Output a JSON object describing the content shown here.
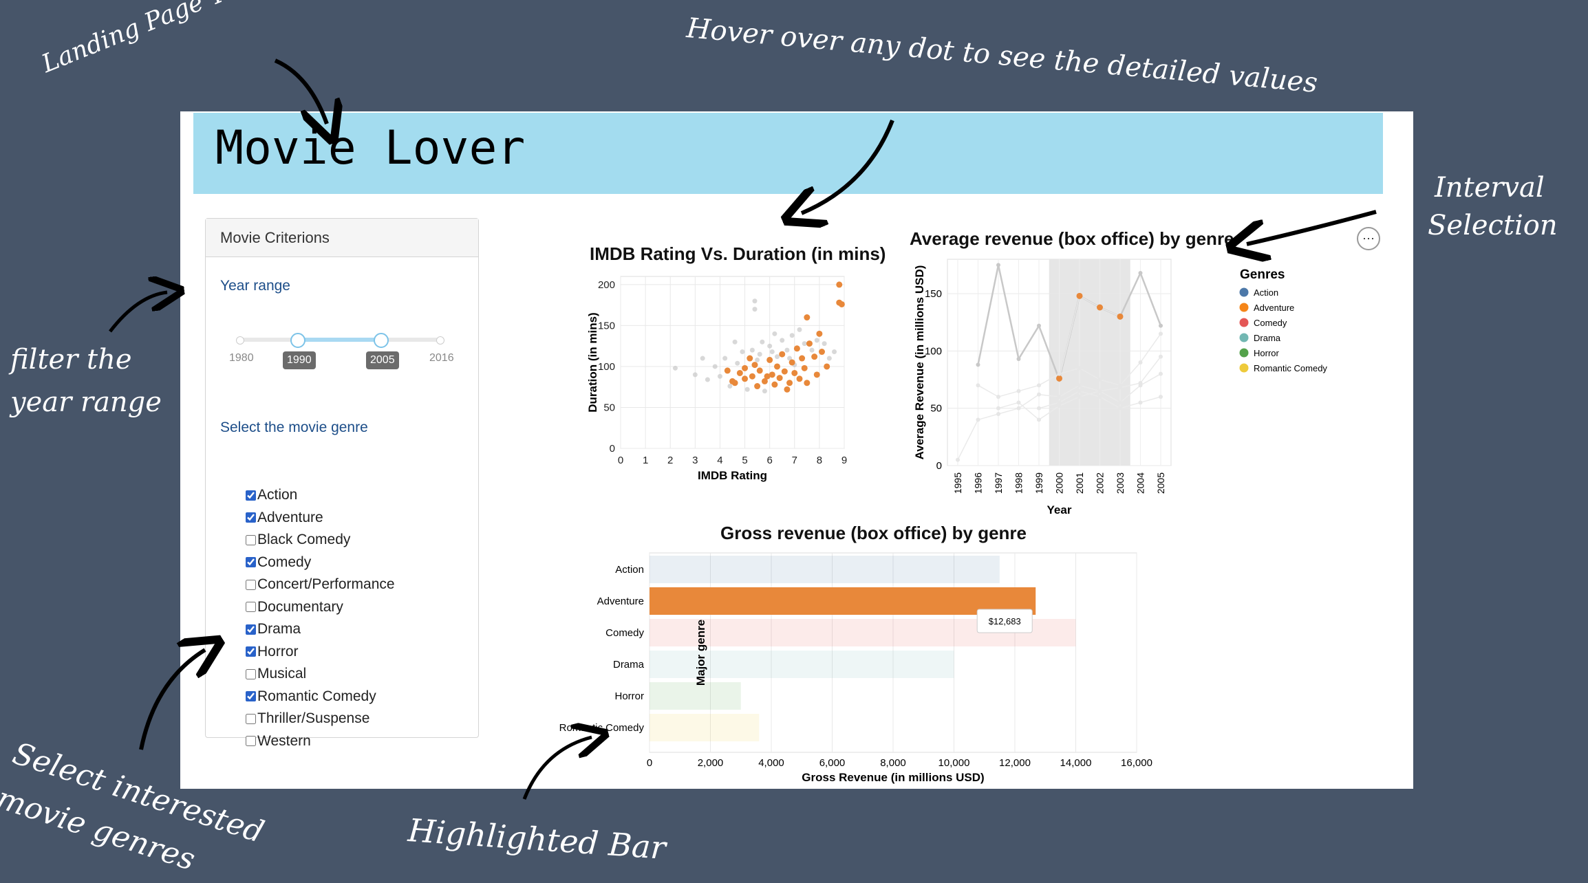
{
  "annotations": {
    "landing_title": "Landing Page Title",
    "hover": "Hover over any dot to see the detailed values",
    "interval": [
      "Interval",
      "Selection"
    ],
    "filter": [
      "filter the",
      "year range"
    ],
    "select_genres": [
      "Select interested",
      "movie genres"
    ],
    "highlighted": "Highlighted Bar"
  },
  "header": {
    "title": "Movie Lover"
  },
  "panel": {
    "heading": "Movie Criterions",
    "year_label": "Year range",
    "slider": {
      "min": "1980",
      "max": "2016",
      "from": "1990",
      "to": "2005"
    },
    "genre_label": "Select the movie genre",
    "genres": [
      {
        "label": "Action",
        "checked": true
      },
      {
        "label": "Adventure",
        "checked": true
      },
      {
        "label": "Black Comedy",
        "checked": false
      },
      {
        "label": "Comedy",
        "checked": true
      },
      {
        "label": "Concert/Performance",
        "checked": false
      },
      {
        "label": "Documentary",
        "checked": false
      },
      {
        "label": "Drama",
        "checked": true
      },
      {
        "label": "Horror",
        "checked": true
      },
      {
        "label": "Musical",
        "checked": false
      },
      {
        "label": "Romantic Comedy",
        "checked": true
      },
      {
        "label": "Thriller/Suspense",
        "checked": false
      },
      {
        "label": "Western",
        "checked": false
      }
    ]
  },
  "colors": {
    "highlight": "#e8883a",
    "muted": "#c8c8c8",
    "selection": "#e6e6e6"
  },
  "menu_icon": "ellipsis-icon",
  "chart_data": [
    {
      "type": "scatter",
      "title": "IMDB Rating Vs. Duration (in mins)",
      "xlabel": "IMDB Rating",
      "ylabel": "Duration (in mins)",
      "xlim": [
        0,
        9
      ],
      "ylim": [
        0,
        210
      ],
      "xticks": [
        "0",
        "1",
        "2",
        "3",
        "4",
        "5",
        "6",
        "7",
        "8",
        "9"
      ],
      "yticks": [
        "0",
        "50",
        "100",
        "150",
        "200"
      ],
      "highlighted": [
        [
          4.6,
          80
        ],
        [
          4.8,
          92
        ],
        [
          5.0,
          85
        ],
        [
          5.0,
          98
        ],
        [
          5.2,
          110
        ],
        [
          5.3,
          88
        ],
        [
          5.4,
          102
        ],
        [
          5.5,
          76
        ],
        [
          5.6,
          95
        ],
        [
          5.8,
          82
        ],
        [
          6.0,
          108
        ],
        [
          6.1,
          90
        ],
        [
          6.2,
          78
        ],
        [
          6.3,
          100
        ],
        [
          6.4,
          86
        ],
        [
          6.5,
          115
        ],
        [
          6.6,
          94
        ],
        [
          6.8,
          80
        ],
        [
          6.9,
          105
        ],
        [
          7.0,
          92
        ],
        [
          7.1,
          122
        ],
        [
          7.2,
          85
        ],
        [
          7.3,
          110
        ],
        [
          7.4,
          98
        ],
        [
          7.5,
          80
        ],
        [
          7.6,
          128
        ],
        [
          7.8,
          112
        ],
        [
          7.9,
          90
        ],
        [
          8.0,
          140
        ],
        [
          8.1,
          118
        ],
        [
          8.3,
          100
        ],
        [
          8.8,
          200
        ],
        [
          8.8,
          178
        ],
        [
          8.9,
          176
        ],
        [
          7.5,
          160
        ],
        [
          4.3,
          95
        ],
        [
          4.5,
          82
        ],
        [
          6.7,
          72
        ],
        [
          5.9,
          88
        ]
      ],
      "muted": [
        [
          2.2,
          98
        ],
        [
          3.0,
          90
        ],
        [
          3.5,
          84
        ],
        [
          3.8,
          100
        ],
        [
          4.0,
          88
        ],
        [
          4.2,
          110
        ],
        [
          4.4,
          76
        ],
        [
          4.7,
          104
        ],
        [
          4.9,
          118
        ],
        [
          5.1,
          72
        ],
        [
          5.3,
          120
        ],
        [
          5.5,
          108
        ],
        [
          5.7,
          130
        ],
        [
          5.8,
          70
        ],
        [
          6.0,
          125
        ],
        [
          6.2,
          140
        ],
        [
          6.3,
          112
        ],
        [
          6.5,
          132
        ],
        [
          6.7,
          120
        ],
        [
          6.9,
          138
        ],
        [
          7.0,
          102
        ],
        [
          7.2,
          145
        ],
        [
          7.4,
          128
        ],
        [
          7.7,
          120
        ],
        [
          7.9,
          132
        ],
        [
          8.2,
          128
        ],
        [
          8.4,
          110
        ],
        [
          8.6,
          118
        ],
        [
          5.4,
          180
        ],
        [
          5.4,
          170
        ],
        [
          6.1,
          118
        ],
        [
          4.6,
          130
        ],
        [
          3.3,
          110
        ],
        [
          6.8,
          110
        ],
        [
          5.6,
          115
        ]
      ]
    },
    {
      "type": "line",
      "title": "Average revenue (box office) by genre",
      "xlabel": "Year",
      "ylabel": "Average Revenue (in millions USD)",
      "x": [
        "1995",
        "1996",
        "1997",
        "1998",
        "1999",
        "2000",
        "2001",
        "2002",
        "2003",
        "2004",
        "2005"
      ],
      "ylim": [
        0,
        180
      ],
      "yticks": [
        "0",
        "50",
        "100",
        "150"
      ],
      "selection": [
        "1999.5",
        "2003.5"
      ],
      "legend_title": "Genres",
      "legend_position": "right",
      "series": [
        {
          "name": "Action",
          "color": "#4c78a8",
          "values": [
            null,
            88,
            175,
            93,
            122,
            75,
            148,
            138,
            130,
            168,
            122
          ]
        },
        {
          "name": "Adventure",
          "color": "#f58518",
          "values": [
            null,
            null,
            null,
            null,
            null,
            76,
            148,
            138,
            130,
            null,
            null
          ]
        },
        {
          "name": "Comedy",
          "color": "#e45756",
          "values": [
            5,
            40,
            45,
            50,
            62,
            60,
            70,
            65,
            68,
            72,
            95
          ]
        },
        {
          "name": "Drama",
          "color": "#72b7b2",
          "values": [
            null,
            70,
            60,
            65,
            70,
            80,
            85,
            75,
            70,
            90,
            115
          ]
        },
        {
          "name": "Horror",
          "color": "#54a24b",
          "values": [
            null,
            null,
            50,
            55,
            40,
            52,
            60,
            65,
            55,
            70,
            80
          ]
        },
        {
          "name": "Romantic Comedy",
          "color": "#eeca3b",
          "values": [
            null,
            null,
            null,
            null,
            50,
            55,
            65,
            60,
            50,
            55,
            60
          ]
        }
      ]
    },
    {
      "type": "bar",
      "title": "Gross revenue (box office) by genre",
      "xlabel": "Gross Revenue (in millions USD)",
      "ylabel": "Major genre",
      "categories": [
        "Action",
        "Adventure",
        "Comedy",
        "Drama",
        "Horror",
        "Romantic Comedy"
      ],
      "values": [
        11500,
        12683,
        14000,
        10000,
        3000,
        3600
      ],
      "colors": [
        "#4c78a8",
        "#f58518",
        "#e45756",
        "#72b7b2",
        "#54a24b",
        "#eeca3b"
      ],
      "xlim": [
        0,
        16000
      ],
      "xticks": [
        "0",
        "2,000",
        "4,000",
        "6,000",
        "8,000",
        "10,000",
        "12,000",
        "14,000",
        "16,000"
      ],
      "highlighted": "Adventure",
      "tooltip": "$12,683"
    }
  ]
}
